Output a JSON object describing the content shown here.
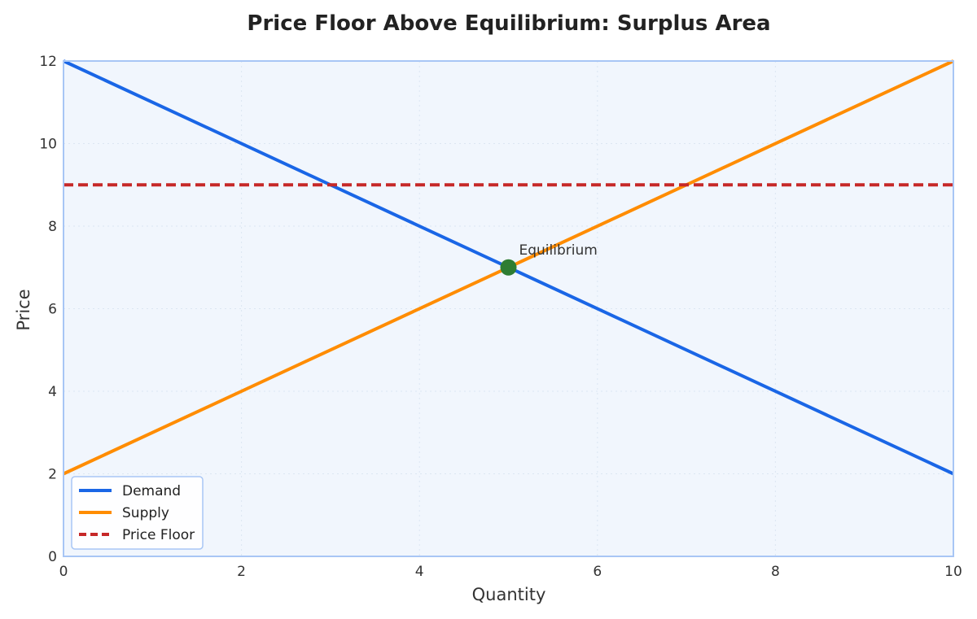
{
  "chart_data": {
    "type": "line",
    "title": "Price Floor Above Equilibrium: Surplus Area",
    "xlabel": "Quantity",
    "ylabel": "Price",
    "xlim": [
      0,
      10
    ],
    "ylim": [
      0,
      12
    ],
    "x_ticks": [
      "0",
      "2",
      "4",
      "6",
      "8",
      "10"
    ],
    "y_ticks": [
      "0",
      "2",
      "4",
      "6",
      "8",
      "10",
      "12"
    ],
    "grid": true,
    "legend_position": "bottom-left",
    "series": [
      {
        "name": "Demand",
        "x": [
          0,
          10
        ],
        "y": [
          12,
          2
        ],
        "color": "#1a66e6",
        "style": "solid"
      },
      {
        "name": "Supply",
        "x": [
          0,
          10
        ],
        "y": [
          2,
          12
        ],
        "color": "#ff8c00",
        "style": "solid"
      },
      {
        "name": "Price Floor",
        "x": [
          0,
          10
        ],
        "y": [
          9,
          9
        ],
        "color": "#c62828",
        "style": "dashed"
      }
    ],
    "points": [
      {
        "label": "Equilibrium",
        "x": 5,
        "y": 7,
        "color": "#2e7d32"
      }
    ],
    "colors": {
      "plot_background": "#f1f6fd",
      "plot_border": "#a8c6f5",
      "grid": "#dce6f2"
    }
  }
}
